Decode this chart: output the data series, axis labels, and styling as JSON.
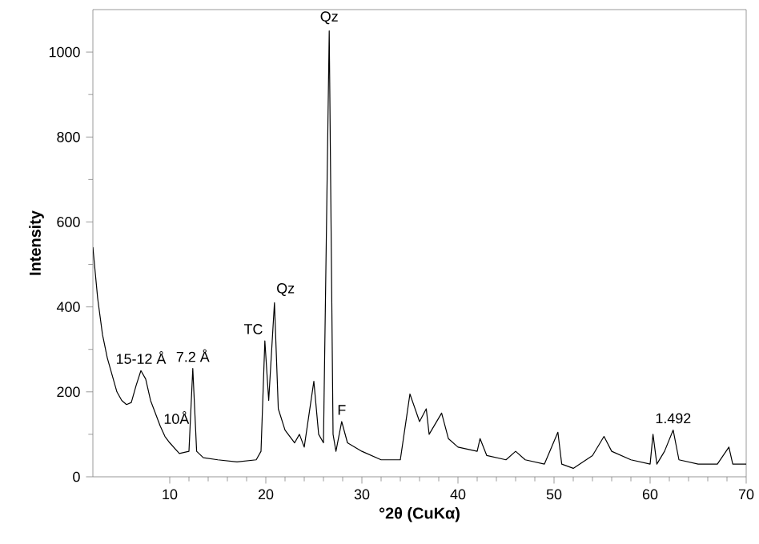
{
  "chart_data": {
    "type": "line",
    "xlabel": "°2θ (CuKα)",
    "ylabel": "Intensity",
    "xlim": [
      2,
      70
    ],
    "ylim": [
      0,
      1100
    ],
    "xticks": [
      10,
      20,
      30,
      40,
      50,
      60,
      70
    ],
    "yticks": [
      0,
      200,
      400,
      600,
      800,
      1000
    ],
    "grid": false,
    "marker": "none",
    "line_style": "solid",
    "annotations": [
      {
        "text": "15-12 Å",
        "x": 7,
        "y": 250
      },
      {
        "text": "10Å",
        "x": 9,
        "y": 120
      },
      {
        "text": "7.2 Å",
        "x": 12.4,
        "y": 255
      },
      {
        "text": "TC",
        "x": 19.9,
        "y": 320
      },
      {
        "text": "Qz",
        "x": 20.9,
        "y": 410
      },
      {
        "text": "Qz",
        "x": 26.6,
        "y": 1050
      },
      {
        "text": "F",
        "x": 27.9,
        "y": 130
      },
      {
        "text": "1.492",
        "x": 62.4,
        "y": 110
      }
    ],
    "series": [
      {
        "color": "#000000",
        "x": [
          2,
          2.5,
          3,
          3.5,
          4,
          4.5,
          5,
          5.5,
          6,
          6.5,
          7,
          7.5,
          8,
          8.5,
          9,
          9.5,
          10,
          11,
          12,
          12.4,
          12.8,
          13.5,
          15,
          17,
          19,
          19.5,
          19.9,
          20.3,
          20.9,
          21.3,
          22,
          23,
          23.5,
          24,
          25,
          25.5,
          26,
          26.6,
          27,
          27.3,
          27.9,
          28.5,
          30,
          32,
          34,
          35,
          36,
          36.7,
          37,
          38.3,
          39,
          40,
          42,
          42.3,
          43,
          45,
          46,
          47,
          49,
          50.4,
          50.8,
          52,
          54,
          55.2,
          56,
          58,
          60,
          60.3,
          60.7,
          61.5,
          62.4,
          63,
          65,
          67,
          68.2,
          68.6,
          70
        ],
        "values": [
          540,
          420,
          335,
          280,
          240,
          200,
          180,
          170,
          175,
          215,
          250,
          230,
          180,
          150,
          120,
          95,
          80,
          55,
          60,
          255,
          60,
          45,
          40,
          35,
          40,
          60,
          320,
          180,
          410,
          160,
          110,
          80,
          100,
          70,
          225,
          100,
          80,
          1050,
          100,
          60,
          130,
          80,
          60,
          40,
          40,
          195,
          130,
          160,
          100,
          150,
          90,
          70,
          60,
          90,
          50,
          40,
          60,
          40,
          30,
          105,
          30,
          20,
          50,
          95,
          60,
          40,
          30,
          100,
          30,
          60,
          110,
          40,
          30,
          30,
          70,
          30,
          30
        ]
      }
    ]
  }
}
